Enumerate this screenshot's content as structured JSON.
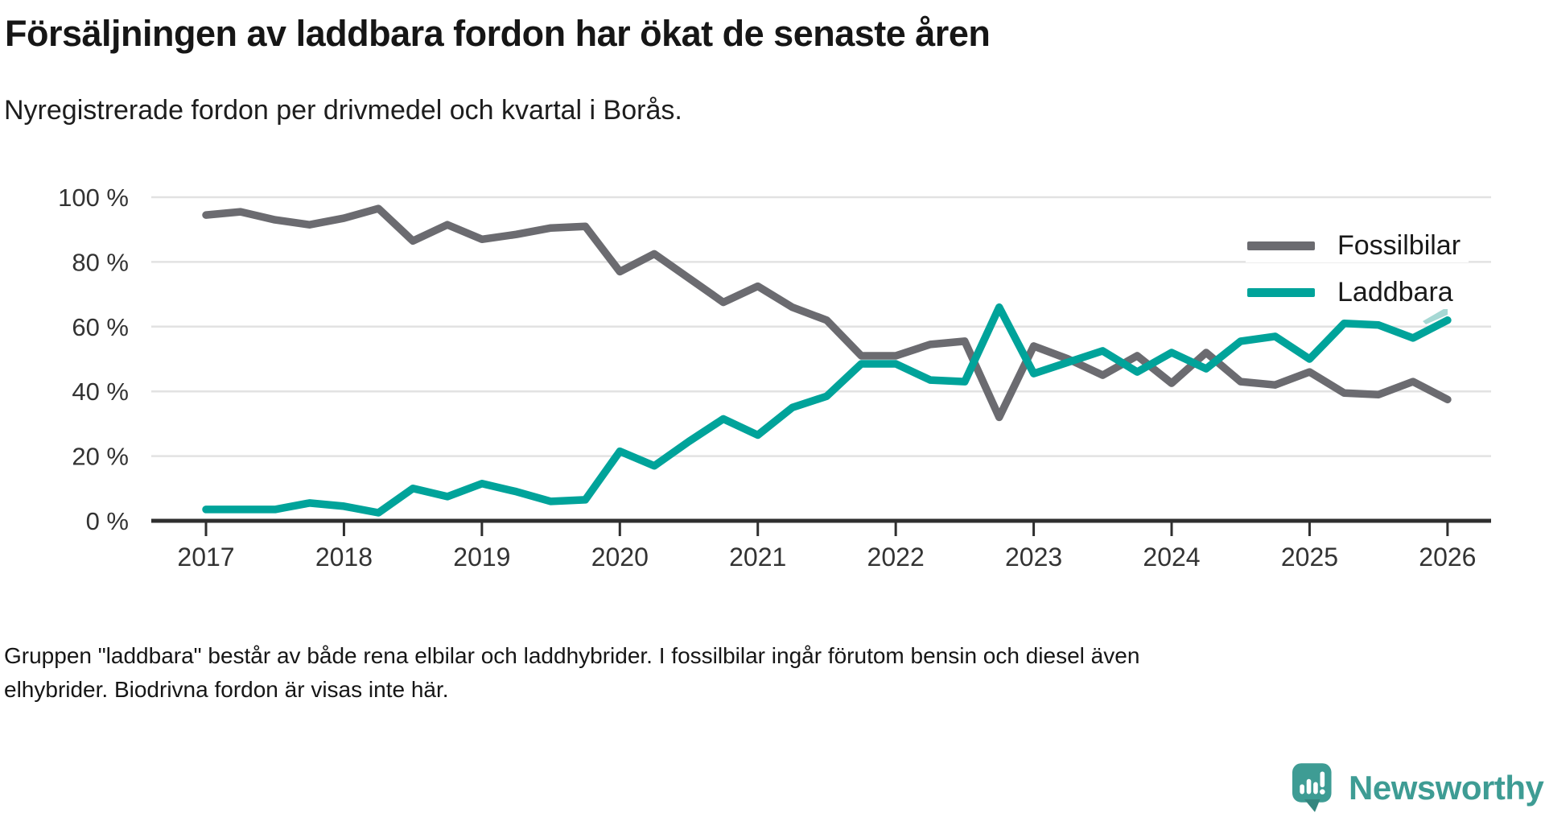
{
  "header": {
    "title": "Försäljningen av laddbara fordon har ökat de senaste åren",
    "subtitle": "Nyregistrerade fordon per drivmedel och kvartal i Borås."
  },
  "footer": {
    "line1": "Gruppen \"laddbara\" består av både rena elbilar och laddhybrider. I fossilbilar ingår förutom bensin och diesel även",
    "line2": "elhybrider. Biodrivna fordon är visas inte här."
  },
  "branding": {
    "name": "Newsworthy",
    "logo_color": "#3e9c94",
    "logo_tail_color": "#35867f"
  },
  "colors": {
    "fossil_gray": "#6b6b70",
    "laddbara_teal": "#00a39a",
    "endcap_light_teal": "#a6d8d4",
    "gridline": "#e2e2e2",
    "axis": "#2f2f2f",
    "tick_label": "#333333"
  },
  "chart_data": {
    "type": "line",
    "title": "Försäljningen av laddbara fordon har ökat de senaste åren",
    "subtitle": "Nyregistrerade fordon per drivmedel och kvartal i Borås.",
    "x_unit": "quarter",
    "categories": [
      "2017 Q1",
      "2017 Q2",
      "2017 Q3",
      "2017 Q4",
      "2018 Q1",
      "2018 Q2",
      "2018 Q3",
      "2018 Q4",
      "2019 Q1",
      "2019 Q2",
      "2019 Q3",
      "2019 Q4",
      "2020 Q1",
      "2020 Q2",
      "2020 Q3",
      "2020 Q4",
      "2021 Q1",
      "2021 Q2",
      "2021 Q3",
      "2021 Q4",
      "2022 Q1",
      "2022 Q2",
      "2022 Q3",
      "2022 Q4",
      "2023 Q1",
      "2023 Q2",
      "2023 Q3",
      "2023 Q4",
      "2024 Q1",
      "2024 Q2",
      "2024 Q3",
      "2024 Q4",
      "2025 Q1",
      "2025 Q2",
      "2025 Q3",
      "2025 Q4",
      "2026 Q1"
    ],
    "series": [
      {
        "name": "Fossilbilar",
        "color": "#6b6b70",
        "values": [
          94.5,
          95.5,
          93,
          91.5,
          93.5,
          96.5,
          86.5,
          91.5,
          87,
          88.5,
          90.5,
          91,
          77,
          82.5,
          75,
          67.5,
          72.5,
          66,
          62,
          51,
          51,
          54.5,
          55.5,
          32,
          54,
          50,
          45,
          51,
          42.5,
          52,
          43,
          42,
          46,
          39.5,
          39,
          43,
          37.5
        ]
      },
      {
        "name": "Laddbara",
        "color": "#00a39a",
        "values": [
          3.5,
          3.5,
          3.5,
          5.5,
          4.5,
          2.5,
          10,
          7.5,
          11.5,
          9,
          6,
          6.5,
          21.5,
          17,
          24.5,
          31.5,
          26.5,
          35,
          38.5,
          48.5,
          48.5,
          43.5,
          43,
          66,
          45.5,
          49,
          52.5,
          46,
          52,
          47,
          55.5,
          57,
          50,
          61,
          60.5,
          56.5,
          62
        ]
      }
    ],
    "x_tick_labels": [
      "2017",
      "2018",
      "2019",
      "2020",
      "2021",
      "2022",
      "2023",
      "2024",
      "2025",
      "2026"
    ],
    "y_ticks": [
      0,
      20,
      40,
      60,
      80,
      100
    ],
    "y_tick_labels": [
      "0 %",
      "20 %",
      "40 %",
      "60 %",
      "80 %",
      "100 %"
    ],
    "ylim": [
      0,
      100
    ],
    "grid": "horizontal",
    "legend_position": "top-right"
  }
}
